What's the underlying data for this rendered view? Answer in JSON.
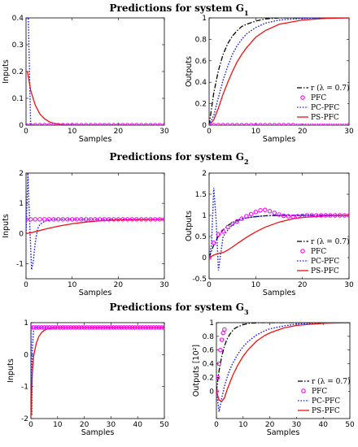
{
  "titles": [
    "Predictions for system G",
    "Predictions for system G",
    "Predictions for system G"
  ],
  "title_subscripts": [
    "1",
    "2",
    "3"
  ],
  "legend": {
    "r": "r (λ = 0.7)",
    "pfc": "PFC",
    "pc": "PC-PFC",
    "ps": "PS-PFC"
  },
  "colors": {
    "r": "#000000",
    "pfc": "#ff00ff",
    "pc": "#1a1aff",
    "ps": "#ee1111"
  },
  "chart_data": [
    {
      "type": "line",
      "xlabel": "Samples",
      "ylabel": "Inputs",
      "xlim": [
        0,
        30
      ],
      "ylim": [
        0,
        0.4
      ],
      "xticks": [
        0,
        10,
        20,
        30
      ],
      "yticks": [
        0,
        0.1,
        0.2,
        0.3,
        0.4
      ],
      "xtick_labels": [
        "0",
        "10",
        "20",
        "30"
      ],
      "ytick_labels": [
        "0",
        "0.1",
        "0.2",
        "0.3",
        "0.4"
      ],
      "series": [
        {
          "key": "pc",
          "style": "dotted",
          "x": [
            0,
            0.5,
            1,
            30
          ],
          "y": [
            0.4,
            0.4,
            0,
            0
          ]
        },
        {
          "key": "ps",
          "style": "solid",
          "x": [
            0,
            0.3,
            1,
            2,
            3,
            4,
            5,
            6,
            8,
            10,
            30
          ],
          "y": [
            0.2,
            0.2,
            0.13,
            0.075,
            0.042,
            0.024,
            0.013,
            0.007,
            0.002,
            0.0005,
            0
          ]
        },
        {
          "key": "pfc",
          "style": "markers",
          "x": [
            0,
            1,
            2,
            3,
            4,
            5,
            6,
            7,
            8,
            9,
            10,
            11,
            12,
            13,
            14,
            15,
            16,
            17,
            18,
            19,
            20,
            21,
            22,
            23,
            24,
            25,
            26,
            27,
            28,
            29,
            30
          ],
          "y": [
            0,
            0,
            0,
            0,
            0,
            0,
            0,
            0,
            0,
            0,
            0,
            0,
            0,
            0,
            0,
            0,
            0,
            0,
            0,
            0,
            0,
            0,
            0,
            0,
            0,
            0,
            0,
            0,
            0,
            0,
            0
          ]
        }
      ]
    },
    {
      "type": "line",
      "xlabel": "Samples",
      "ylabel": "Outputs",
      "xlim": [
        0,
        30
      ],
      "ylim": [
        0,
        1
      ],
      "xticks": [
        0,
        10,
        20,
        30
      ],
      "yticks": [
        0,
        0.2,
        0.4,
        0.6,
        0.8,
        1
      ],
      "xtick_labels": [
        "0",
        "10",
        "20",
        "30"
      ],
      "ytick_labels": [
        "0",
        "0.2",
        "0.4",
        "0.6",
        "0.8",
        "1"
      ],
      "legend_position": "right",
      "series": [
        {
          "key": "r",
          "style": "dashdot",
          "x": [
            0,
            1,
            2,
            3,
            4,
            5,
            6,
            7,
            8,
            10,
            12,
            15,
            20,
            30
          ],
          "y": [
            0,
            0.3,
            0.51,
            0.66,
            0.76,
            0.83,
            0.88,
            0.92,
            0.94,
            0.97,
            0.99,
            1,
            1,
            1
          ]
        },
        {
          "key": "pc",
          "style": "dotted",
          "x": [
            0,
            1,
            2,
            3,
            4,
            5,
            6,
            7,
            8,
            10,
            12,
            15,
            20,
            25,
            30
          ],
          "y": [
            0,
            0.09,
            0.26,
            0.42,
            0.55,
            0.66,
            0.74,
            0.8,
            0.85,
            0.91,
            0.95,
            0.98,
            0.995,
            1,
            1
          ]
        },
        {
          "key": "ps",
          "style": "solid",
          "x": [
            0,
            1,
            2,
            3,
            4,
            5,
            6,
            7,
            8,
            10,
            12,
            15,
            20,
            25,
            30
          ],
          "y": [
            0,
            0.05,
            0.16,
            0.29,
            0.4,
            0.5,
            0.59,
            0.66,
            0.72,
            0.82,
            0.88,
            0.94,
            0.98,
            0.995,
            1
          ]
        },
        {
          "key": "pfc",
          "style": "markers",
          "x": [
            0,
            1,
            2,
            3,
            4,
            5,
            6,
            7,
            8,
            9,
            10,
            11,
            12,
            13,
            14,
            15,
            16,
            17,
            18,
            19,
            20,
            21,
            22,
            23,
            24,
            25,
            26,
            27,
            28,
            29,
            30
          ],
          "y": [
            0,
            0,
            0,
            0,
            0,
            0,
            0,
            0,
            0,
            0,
            0,
            0,
            0,
            0,
            0,
            0,
            0,
            0,
            0,
            0,
            0,
            0,
            0,
            0,
            0,
            0,
            0,
            0,
            0,
            0,
            0
          ]
        }
      ]
    },
    {
      "type": "line",
      "xlabel": "Samples",
      "ylabel": "Inputs",
      "xlim": [
        0,
        30
      ],
      "ylim": [
        -1.5,
        2
      ],
      "xticks": [
        0,
        10,
        20,
        30
      ],
      "yticks": [
        -1,
        0,
        1,
        2
      ],
      "xtick_labels": [
        "0",
        "10",
        "20",
        "30"
      ],
      "ytick_labels": [
        "-1",
        "0",
        "1",
        "2"
      ],
      "series": [
        {
          "key": "pc",
          "style": "dotted",
          "x": [
            0,
            0.4,
            0.8,
            1.2,
            1.6,
            2,
            2.5,
            3,
            4,
            5,
            6,
            8,
            30
          ],
          "y": [
            0,
            2,
            0.3,
            -1.2,
            -0.9,
            -0.3,
            0.15,
            0.3,
            0.4,
            0.45,
            0.47,
            0.47,
            0.47
          ]
        },
        {
          "key": "ps",
          "style": "solid",
          "x": [
            0,
            1,
            2,
            4,
            6,
            8,
            10,
            13,
            16,
            20,
            25,
            30
          ],
          "y": [
            0,
            0.02,
            0.06,
            0.14,
            0.21,
            0.27,
            0.32,
            0.38,
            0.42,
            0.45,
            0.46,
            0.47
          ]
        },
        {
          "key": "pfc",
          "style": "markers",
          "x": [
            0,
            1,
            2,
            3,
            4,
            5,
            6,
            7,
            8,
            9,
            10,
            11,
            12,
            13,
            14,
            15,
            16,
            17,
            18,
            19,
            20,
            21,
            22,
            23,
            24,
            25,
            26,
            27,
            28,
            29,
            30
          ],
          "y": [
            0.47,
            0.47,
            0.47,
            0.47,
            0.47,
            0.47,
            0.47,
            0.47,
            0.47,
            0.47,
            0.47,
            0.47,
            0.47,
            0.47,
            0.47,
            0.47,
            0.47,
            0.47,
            0.47,
            0.47,
            0.47,
            0.47,
            0.47,
            0.47,
            0.47,
            0.47,
            0.47,
            0.47,
            0.47,
            0.47,
            0.47
          ]
        }
      ]
    },
    {
      "type": "line",
      "xlabel": "Samples",
      "ylabel": "Outputs",
      "xlim": [
        0,
        30
      ],
      "ylim": [
        -0.5,
        2
      ],
      "xticks": [
        0,
        10,
        20,
        30
      ],
      "yticks": [
        -0.5,
        0,
        0.5,
        1,
        1.5,
        2
      ],
      "xtick_labels": [
        "0",
        "10",
        "20",
        "30"
      ],
      "ytick_labels": [
        "-0.5",
        "0",
        "0.5",
        "1",
        "1.5",
        "2"
      ],
      "legend_position": "right",
      "series": [
        {
          "key": "r",
          "style": "dashdot",
          "x": [
            0,
            1,
            2,
            3,
            4,
            5,
            6,
            7,
            8,
            10,
            12,
            15,
            20,
            30
          ],
          "y": [
            0,
            0.3,
            0.51,
            0.66,
            0.76,
            0.83,
            0.88,
            0.92,
            0.94,
            0.97,
            0.99,
            1,
            1,
            1
          ]
        },
        {
          "key": "pc",
          "style": "dotted",
          "x": [
            0,
            0.5,
            1,
            1.5,
            2,
            2.5,
            3,
            4,
            5,
            6,
            7,
            8,
            10,
            12,
            15,
            20,
            30
          ],
          "y": [
            0,
            0.3,
            1.65,
            0.9,
            -0.3,
            0.1,
            0.5,
            0.65,
            0.78,
            0.86,
            0.91,
            0.94,
            0.97,
            0.99,
            1,
            1,
            1
          ]
        },
        {
          "key": "ps",
          "style": "solid",
          "x": [
            0,
            1,
            2,
            3,
            4,
            5,
            6,
            8,
            10,
            12,
            15,
            18,
            20,
            25,
            30
          ],
          "y": [
            0,
            0.06,
            0.1,
            0.12,
            0.18,
            0.25,
            0.33,
            0.48,
            0.61,
            0.72,
            0.84,
            0.92,
            0.95,
            0.99,
            1
          ]
        },
        {
          "key": "pfc",
          "style": "markers",
          "x": [
            0,
            1,
            2,
            3,
            4,
            5,
            6,
            7,
            8,
            9,
            10,
            11,
            12,
            13,
            14,
            15,
            16,
            17,
            18,
            19,
            20,
            21,
            22,
            23,
            24,
            25,
            26,
            27,
            28,
            29,
            30
          ],
          "y": [
            0,
            0.35,
            0.55,
            0.62,
            0.72,
            0.8,
            0.86,
            0.92,
            0.98,
            1.03,
            1.08,
            1.12,
            1.13,
            1.1,
            1.06,
            1.02,
            0.99,
            0.98,
            0.97,
            0.98,
            0.99,
            1,
            1,
            1,
            1,
            1,
            1,
            1,
            1,
            1,
            1
          ]
        }
      ]
    },
    {
      "type": "line",
      "xlabel": "Samples",
      "ylabel": "Inputs",
      "xlim": [
        0,
        50
      ],
      "ylim": [
        -2,
        1
      ],
      "xticks": [
        0,
        10,
        20,
        30,
        40,
        50
      ],
      "yticks": [
        -2,
        -1,
        0,
        1
      ],
      "xtick_labels": [
        "0",
        "10",
        "20",
        "30",
        "40",
        "50"
      ],
      "ytick_labels": [
        "-2",
        "-1",
        "0",
        "1"
      ],
      "series": [
        {
          "key": "pc",
          "style": "dotted",
          "x": [
            0,
            0.3,
            0.6,
            1,
            1.5,
            2,
            3,
            4,
            50
          ],
          "y": [
            0.85,
            -1.9,
            0.3,
            0.75,
            0.84,
            0.85,
            0.85,
            0.85,
            0.85
          ]
        },
        {
          "key": "ps",
          "style": "solid",
          "x": [
            0,
            0.5,
            1,
            2,
            3,
            4,
            5,
            6,
            7,
            8,
            10,
            12,
            15,
            50
          ],
          "y": [
            -1.95,
            -0.6,
            -0.05,
            0.35,
            0.57,
            0.69,
            0.76,
            0.8,
            0.82,
            0.84,
            0.85,
            0.85,
            0.85,
            0.85
          ]
        },
        {
          "key": "pfc",
          "style": "markers",
          "x": [
            0,
            1,
            2,
            3,
            4,
            5,
            6,
            7,
            8,
            9,
            10,
            11,
            12,
            13,
            14,
            15,
            16,
            17,
            18,
            19,
            20,
            21,
            22,
            23,
            24,
            25,
            26,
            27,
            28,
            29,
            30,
            31,
            32,
            33,
            34,
            35,
            36,
            37,
            38,
            39,
            40,
            41,
            42,
            43,
            44,
            45,
            46,
            47,
            48,
            49,
            50
          ],
          "y": [
            0.85,
            0.85,
            0.85,
            0.85,
            0.85,
            0.85,
            0.85,
            0.85,
            0.85,
            0.85,
            0.85,
            0.85,
            0.85,
            0.85,
            0.85,
            0.85,
            0.85,
            0.85,
            0.85,
            0.85,
            0.85,
            0.85,
            0.85,
            0.85,
            0.85,
            0.85,
            0.85,
            0.85,
            0.85,
            0.85,
            0.85,
            0.85,
            0.85,
            0.85,
            0.85,
            0.85,
            0.85,
            0.85,
            0.85,
            0.85,
            0.85,
            0.85,
            0.85,
            0.85,
            0.85,
            0.85,
            0.85,
            0.85,
            0.85,
            0.85,
            0.85
          ]
        }
      ]
    },
    {
      "type": "line",
      "xlabel": "Samples",
      "ylabel": "Outputs [10²]",
      "xlim": [
        0,
        50
      ],
      "ylim": [
        -0.4,
        1
      ],
      "xticks": [
        0,
        10,
        20,
        30,
        40,
        50
      ],
      "yticks": [
        0,
        0.2,
        0.4,
        0.6,
        0.8,
        1
      ],
      "xtick_labels": [
        "0",
        "10",
        "20",
        "30",
        "40",
        "50"
      ],
      "ytick_labels": [
        "0",
        "0.2",
        "0.4",
        "0.6",
        "0.8",
        "1"
      ],
      "legend_position": "right",
      "series": [
        {
          "key": "r",
          "style": "dashdot",
          "x": [
            0,
            1,
            2,
            3,
            4,
            5,
            6,
            7,
            8,
            10,
            12,
            14,
            16,
            20,
            30,
            50
          ],
          "y": [
            0,
            0.3,
            0.51,
            0.66,
            0.76,
            0.83,
            0.88,
            0.92,
            0.94,
            0.97,
            0.99,
            0.995,
            1,
            1,
            1,
            1
          ]
        },
        {
          "key": "pc",
          "style": "dotted",
          "x": [
            0,
            1,
            2,
            3,
            4,
            5,
            6,
            8,
            10,
            12,
            15,
            18,
            20,
            25,
            30,
            40,
            50
          ],
          "y": [
            0,
            -0.3,
            -0.1,
            0.07,
            0.2,
            0.31,
            0.4,
            0.54,
            0.65,
            0.73,
            0.82,
            0.88,
            0.91,
            0.95,
            0.98,
            0.995,
            1
          ]
        },
        {
          "key": "ps",
          "style": "solid",
          "x": [
            0,
            1,
            2,
            3,
            4,
            5,
            6,
            8,
            10,
            12,
            15,
            18,
            20,
            25,
            30,
            40,
            50
          ],
          "y": [
            0,
            -0.13,
            -0.15,
            -0.1,
            0.02,
            0.12,
            0.22,
            0.38,
            0.51,
            0.61,
            0.73,
            0.81,
            0.85,
            0.92,
            0.96,
            0.99,
            1
          ]
        },
        {
          "key": "pfc",
          "style": "markers",
          "x": [
            0,
            0.5,
            1,
            1.5,
            2,
            2.5,
            3
          ],
          "y": [
            0,
            0.2,
            0.4,
            0.6,
            0.75,
            0.85,
            0.9
          ]
        }
      ]
    }
  ]
}
